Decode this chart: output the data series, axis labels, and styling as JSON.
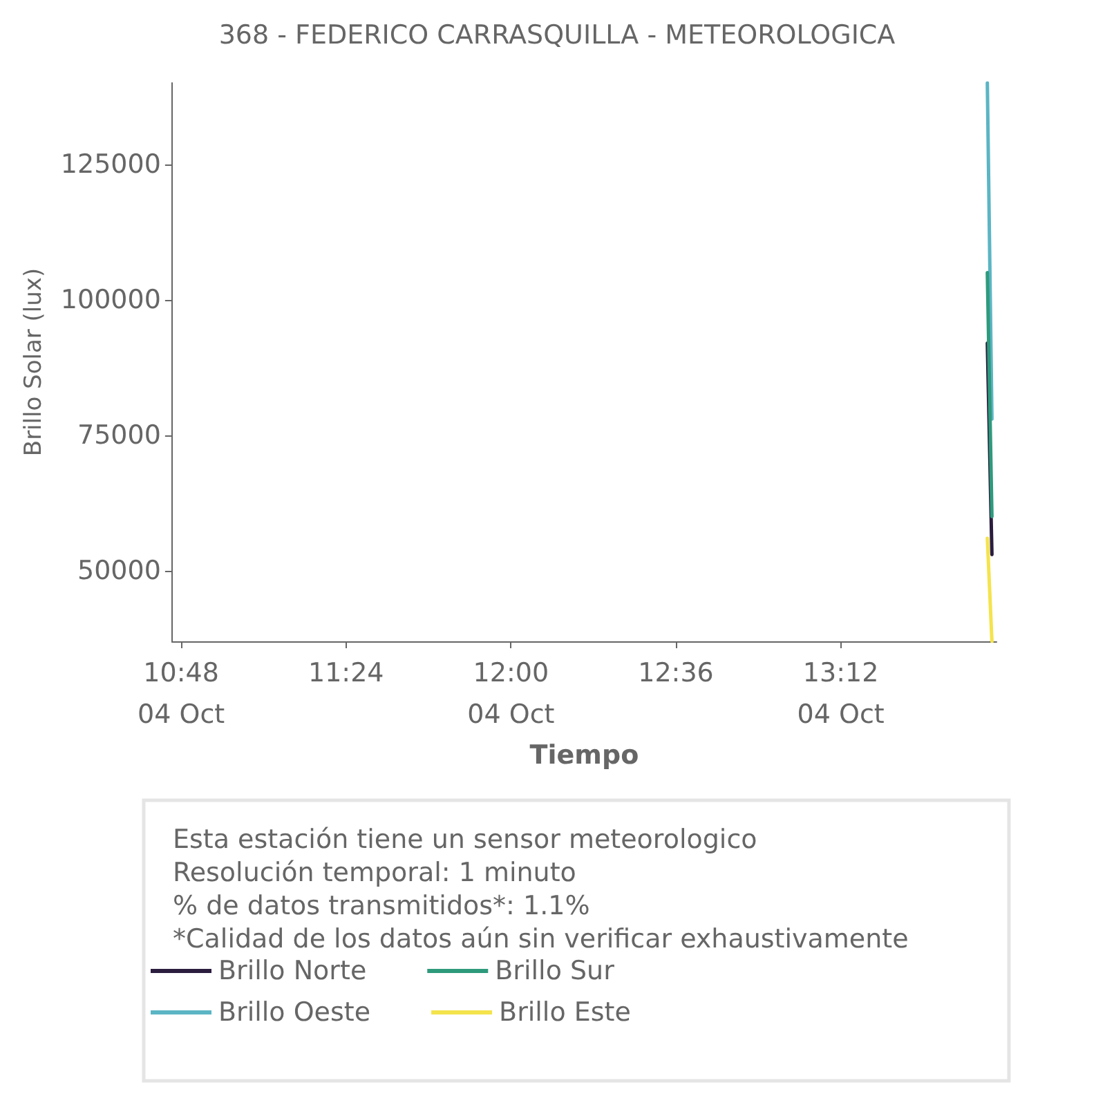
{
  "chart_data": {
    "type": "line",
    "title": "368 - FEDERICO CARRASQUILLA - METEOROLOGICA",
    "xlabel": "Tiempo",
    "ylabel": "Brillo Solar (lux)",
    "x": [
      13.7333,
      13.75
    ],
    "series": [
      {
        "name": "Brillo Norte",
        "color": "#2b1d3e",
        "values": [
          92000,
          53000
        ]
      },
      {
        "name": "Brillo Oeste",
        "color": "#5bb5c4",
        "values": [
          140000,
          78000
        ]
      },
      {
        "name": "Brillo Sur",
        "color": "#2e9a7c",
        "values": [
          105000,
          60000
        ]
      },
      {
        "name": "Brillo Este",
        "color": "#f4e34c",
        "values": [
          56000,
          37000
        ]
      }
    ],
    "xlim": [
      10.7667,
      13.7667
    ],
    "xticks": [
      {
        "value": 10.8,
        "label": "10:48\n04 Oct"
      },
      {
        "value": 11.4,
        "label": "11:24"
      },
      {
        "value": 12.0,
        "label": "12:00\n04 Oct"
      },
      {
        "value": 12.6,
        "label": "12:36"
      },
      {
        "value": 13.2,
        "label": "13:12\n04 Oct"
      }
    ],
    "ylim": [
      37000,
      140000
    ],
    "yticks": [
      50000,
      75000,
      100000,
      125000
    ],
    "annotations": [
      "Esta estación tiene un sensor meteorologico",
      "Resolución temporal: 1 minuto",
      "% de datos transmitidos*: 1.1%",
      "*Calidad de los datos aún sin verificar exhaustivamente"
    ],
    "legend": "bottom",
    "grid": false,
    "marker": "none",
    "line_style": "solid"
  }
}
